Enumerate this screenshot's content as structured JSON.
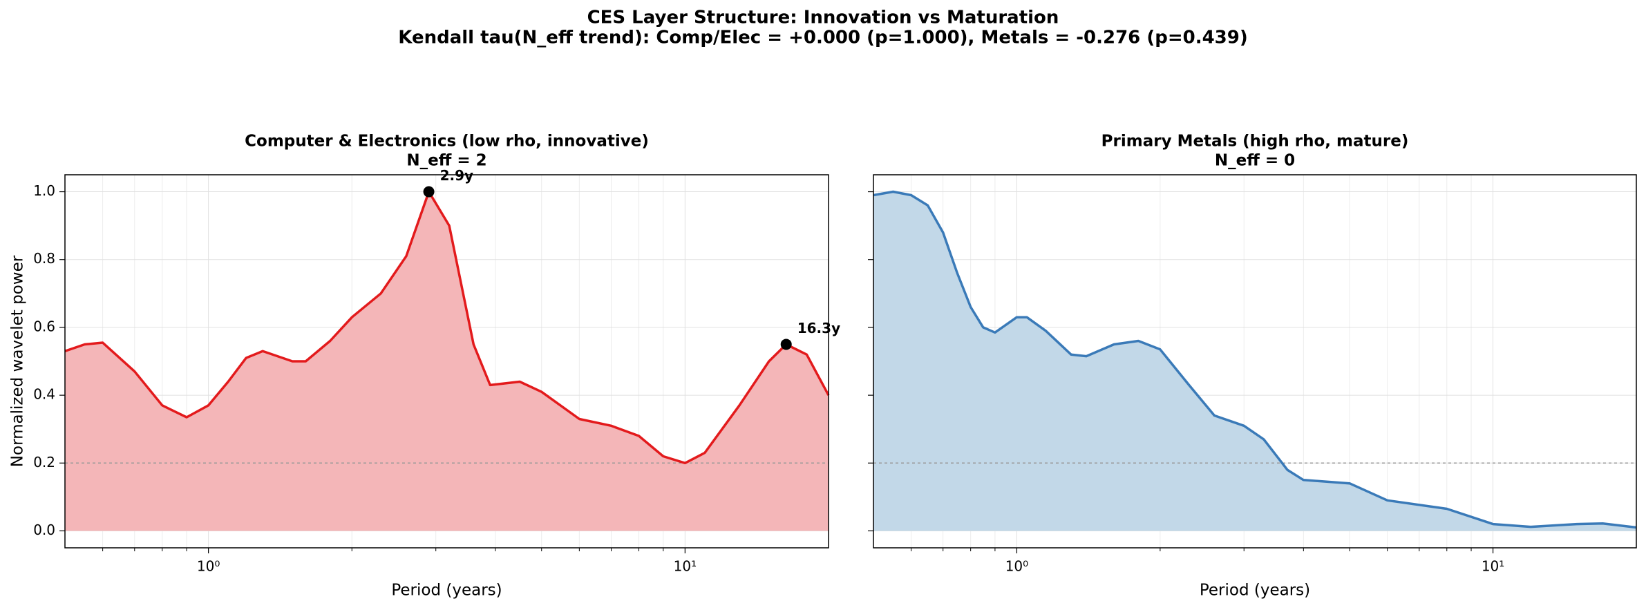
{
  "figure_title": [
    "CES Layer Structure: Innovation vs Maturation",
    "Kendall tau(N_eff trend): Comp/Elec = +0.000 (p=1.000), Metals = -0.276 (p=0.439)"
  ],
  "chart_data": [
    {
      "type": "area",
      "title": [
        "Computer & Electronics (low rho, innovative)",
        "N_eff = 2"
      ],
      "xlabel": "Period (years)",
      "ylabel": "Normalized wavelet power",
      "x": [
        0.5,
        0.55,
        0.6,
        0.7,
        0.8,
        0.9,
        1.0,
        1.1,
        1.2,
        1.3,
        1.5,
        1.6,
        1.8,
        2.0,
        2.3,
        2.6,
        2.9,
        3.2,
        3.6,
        3.9,
        4.5,
        5.0,
        6.0,
        7.0,
        8.0,
        9.0,
        10,
        11,
        13,
        15,
        16.3,
        18,
        20
      ],
      "values": [
        0.53,
        0.55,
        0.555,
        0.47,
        0.37,
        0.335,
        0.37,
        0.44,
        0.51,
        0.53,
        0.5,
        0.5,
        0.56,
        0.63,
        0.7,
        0.81,
        1.0,
        0.9,
        0.55,
        0.43,
        0.44,
        0.41,
        0.33,
        0.31,
        0.28,
        0.22,
        0.2,
        0.23,
        0.37,
        0.5,
        0.55,
        0.52,
        0.4
      ],
      "color": "#e31a1c",
      "fill_color": "#f4b6b8",
      "peaks": [
        {
          "x": 2.9,
          "y": 1.0,
          "label": "2.9y"
        },
        {
          "x": 16.3,
          "y": 0.55,
          "label": "16.3y"
        }
      ],
      "threshold": 0.2,
      "xscale": "log",
      "xlim": [
        0.5,
        20
      ],
      "xticks": [
        {
          "value": 1,
          "label": "10⁰"
        },
        {
          "value": 10,
          "label": "10¹"
        }
      ],
      "xminorticks": [
        0.6,
        0.7,
        0.8,
        0.9,
        2,
        3,
        4,
        5,
        6,
        7,
        8,
        9
      ],
      "ylim": [
        -0.05,
        1.05
      ],
      "yticks": [
        {
          "value": 0,
          "label": "0.0"
        },
        0.2,
        0.4,
        0.6,
        0.8,
        {
          "value": 1,
          "label": "1.0"
        }
      ],
      "show_ytick_labels": true,
      "grid": true
    },
    {
      "type": "area",
      "title": [
        "Primary Metals (high rho, mature)",
        "N_eff = 0"
      ],
      "xlabel": "Period (years)",
      "x": [
        0.5,
        0.55,
        0.6,
        0.65,
        0.7,
        0.75,
        0.8,
        0.85,
        0.9,
        1.0,
        1.05,
        1.15,
        1.3,
        1.4,
        1.6,
        1.8,
        2.0,
        2.3,
        2.6,
        3.0,
        3.3,
        3.7,
        4.0,
        5.0,
        6.0,
        8.0,
        10,
        12,
        15,
        17,
        20
      ],
      "values": [
        0.99,
        1.0,
        0.99,
        0.96,
        0.88,
        0.76,
        0.66,
        0.6,
        0.585,
        0.63,
        0.63,
        0.59,
        0.52,
        0.515,
        0.55,
        0.56,
        0.535,
        0.43,
        0.34,
        0.31,
        0.27,
        0.18,
        0.15,
        0.14,
        0.09,
        0.065,
        0.02,
        0.012,
        0.02,
        0.022,
        0.01
      ],
      "color": "#3a7ab8",
      "fill_color": "#c2d8e8",
      "peaks": [],
      "threshold": 0.2,
      "xscale": "log",
      "xlim": [
        0.5,
        20
      ],
      "xticks": [
        {
          "value": 1,
          "label": "10⁰"
        },
        {
          "value": 10,
          "label": "10¹"
        }
      ],
      "xminorticks": [
        0.6,
        0.7,
        0.8,
        0.9,
        2,
        3,
        4,
        5,
        6,
        7,
        8,
        9
      ],
      "ylim": [
        -0.05,
        1.05
      ],
      "yticks": [
        0,
        0.2,
        0.4,
        0.6,
        0.8,
        1
      ],
      "show_ytick_labels": false,
      "grid": true
    }
  ]
}
